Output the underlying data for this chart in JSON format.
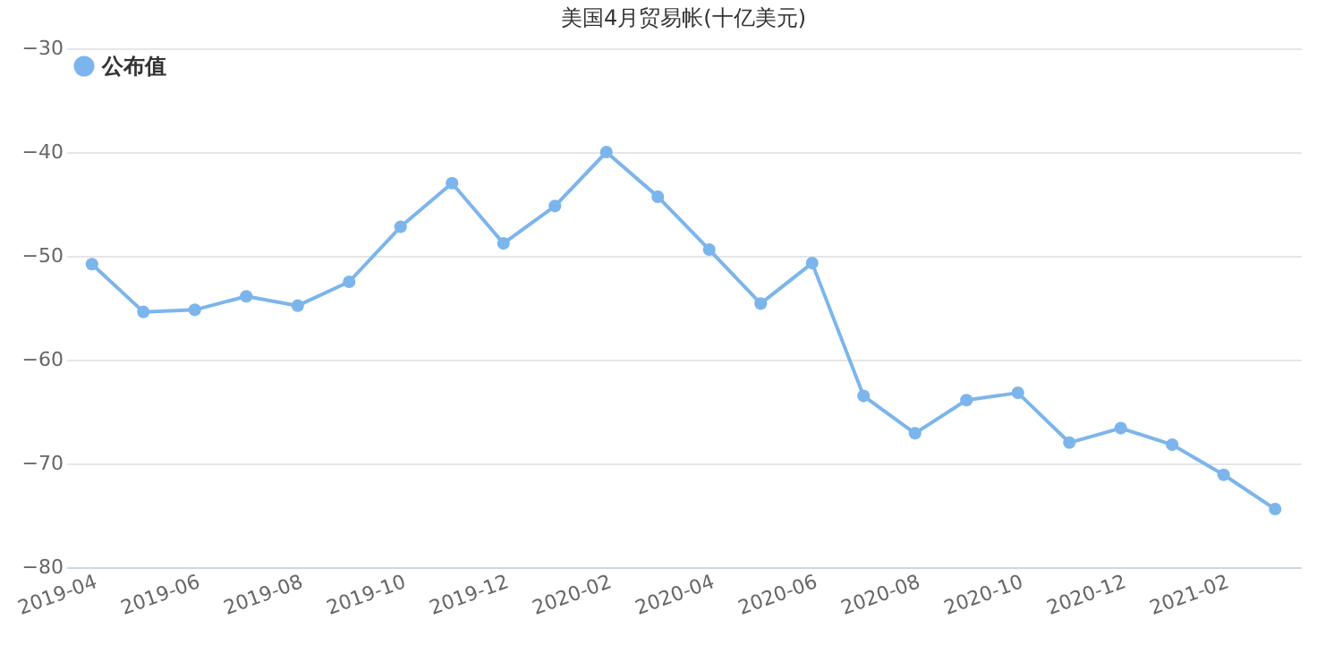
{
  "chart_data": {
    "type": "line",
    "title": "美国4月贸易帐(十亿美元)",
    "categories": [
      "2019-04",
      null,
      "2019-06",
      null,
      "2019-08",
      null,
      "2019-10",
      null,
      "2019-12",
      null,
      "2020-02",
      null,
      "2020-04",
      null,
      "2020-06",
      null,
      "2020-08",
      null,
      "2020-10",
      null,
      "2020-12",
      null,
      "2021-02",
      null
    ],
    "series": [
      {
        "name": "公布值",
        "color": "#7cb5ec",
        "values": [
          -50.8,
          -55.4,
          -55.2,
          -53.9,
          -54.8,
          -52.5,
          -47.2,
          -43.0,
          -48.8,
          -45.2,
          -40.0,
          -44.3,
          -49.4,
          -54.6,
          -50.7,
          -63.5,
          -67.1,
          -63.9,
          -63.2,
          -68.0,
          -66.6,
          -68.2,
          -71.1,
          -74.4
        ]
      }
    ],
    "ylim": [
      -80,
      -30
    ],
    "yticks": [
      -80,
      -70,
      -60,
      -50,
      -40,
      -30
    ],
    "grid": "y",
    "legend": "top left",
    "marker": "circle",
    "line_style": "solid"
  }
}
